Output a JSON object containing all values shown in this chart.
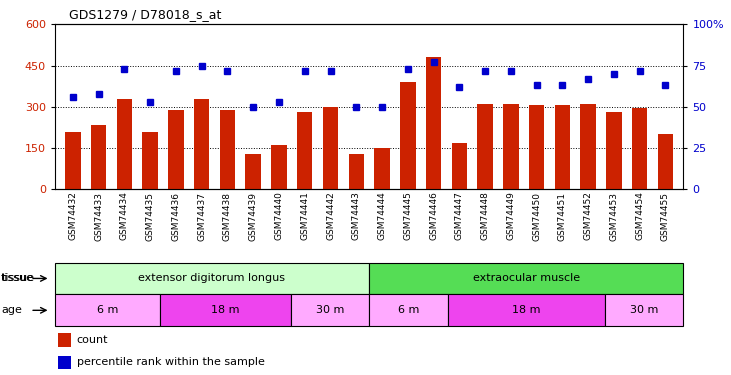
{
  "title": "GDS1279 / D78018_s_at",
  "samples": [
    "GSM74432",
    "GSM74433",
    "GSM74434",
    "GSM74435",
    "GSM74436",
    "GSM74437",
    "GSM74438",
    "GSM74439",
    "GSM74440",
    "GSM74441",
    "GSM74442",
    "GSM74443",
    "GSM74444",
    "GSM74445",
    "GSM74446",
    "GSM74447",
    "GSM74448",
    "GSM74449",
    "GSM74450",
    "GSM74451",
    "GSM74452",
    "GSM74453",
    "GSM74454",
    "GSM74455"
  ],
  "counts": [
    210,
    235,
    330,
    210,
    290,
    330,
    290,
    130,
    160,
    280,
    300,
    130,
    150,
    390,
    480,
    170,
    310,
    310,
    305,
    305,
    310,
    280,
    295,
    200
  ],
  "percentiles": [
    56,
    58,
    73,
    53,
    72,
    75,
    72,
    50,
    53,
    72,
    72,
    50,
    50,
    73,
    77,
    62,
    72,
    72,
    63,
    63,
    67,
    70,
    72,
    63
  ],
  "bar_color": "#cc2200",
  "dot_color": "#0000cc",
  "bg_color": "#ffffff",
  "xtick_bg": "#cccccc",
  "ylim_left": [
    0,
    600
  ],
  "ylim_right": [
    0,
    100
  ],
  "yticks_left": [
    0,
    150,
    300,
    450,
    600
  ],
  "yticks_right": [
    0,
    25,
    50,
    75,
    100
  ],
  "tissue_groups": [
    {
      "label": "extensor digitorum longus",
      "start": 0,
      "end": 12,
      "color": "#ccffcc"
    },
    {
      "label": "extraocular muscle",
      "start": 12,
      "end": 24,
      "color": "#55dd55"
    }
  ],
  "age_groups": [
    {
      "label": "6 m",
      "start": 0,
      "end": 4,
      "color": "#ffaaff"
    },
    {
      "label": "18 m",
      "start": 4,
      "end": 9,
      "color": "#ee44ee"
    },
    {
      "label": "30 m",
      "start": 9,
      "end": 12,
      "color": "#ffaaff"
    },
    {
      "label": "6 m",
      "start": 12,
      "end": 15,
      "color": "#ffaaff"
    },
    {
      "label": "18 m",
      "start": 15,
      "end": 21,
      "color": "#ee44ee"
    },
    {
      "label": "30 m",
      "start": 21,
      "end": 24,
      "color": "#ffaaff"
    }
  ]
}
